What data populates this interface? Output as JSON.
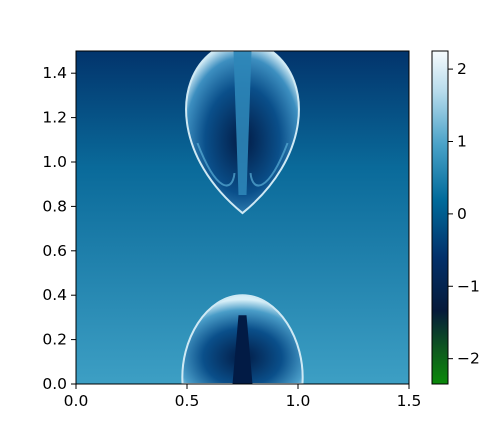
{
  "chart_data": {
    "type": "heatmap",
    "title": "",
    "xlabel": "",
    "ylabel": "",
    "xlim": [
      0.0,
      1.5
    ],
    "ylim": [
      0.0,
      1.5
    ],
    "x_ticks": [
      0.0,
      0.5,
      1.0,
      1.5
    ],
    "x_tick_labels": [
      "0.0",
      "0.5",
      "1.0",
      "1.5"
    ],
    "y_ticks": [
      0.0,
      0.2,
      0.4,
      0.6,
      0.8,
      1.0,
      1.2,
      1.4
    ],
    "y_tick_labels": [
      "0.0",
      "0.2",
      "0.4",
      "0.6",
      "0.8",
      "1.0",
      "1.2",
      "1.4"
    ],
    "colorbar": {
      "range": [
        -2.35,
        2.25
      ],
      "ticks": [
        2,
        1,
        0,
        -1,
        -2
      ],
      "tick_labels": [
        "2",
        "1",
        "0",
        "−1",
        "−2"
      ],
      "colormap": [
        "#0a8a0a",
        "#061a3a",
        "#02306a",
        "#006a9a",
        "#4aa2c8",
        "#f6fbfd"
      ]
    },
    "field_colors": {
      "background_top": "#02346c",
      "background_mid": "#0a6a9a",
      "background_bottom": "#3d9fc4",
      "plume_core": "#021b45",
      "plume_edge": "#cfe9f4"
    },
    "features": [
      {
        "name": "upper bubble",
        "center_x": 0.75,
        "top_y": 1.5,
        "bottom_y": 0.77,
        "half_width": 0.29
      },
      {
        "name": "lower bubble",
        "center_x": 0.75,
        "bottom_y": 0.0,
        "top_y": 0.4,
        "half_width": 0.27
      }
    ]
  }
}
